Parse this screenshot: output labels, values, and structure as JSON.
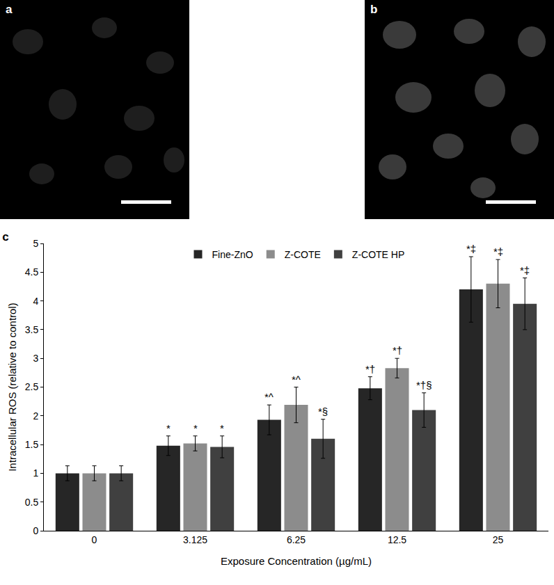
{
  "panels": [
    {
      "label": "a"
    },
    {
      "label": "b"
    }
  ],
  "chart_data": {
    "type": "bar",
    "title": "c",
    "x_label": "Exposure Concentration (µg/mL)",
    "y_label": "Intracellular ROS (relative to control)",
    "categories": [
      "0",
      "3.125",
      "6.25",
      "12.5",
      "25"
    ],
    "series": [
      {
        "name": "Fine-ZnO",
        "color": "#262626",
        "values": [
          1.0,
          1.48,
          1.93,
          2.48,
          4.2
        ],
        "errors": [
          0.13,
          0.17,
          0.26,
          0.2,
          0.57
        ],
        "annotations": [
          null,
          "*",
          "*^",
          "*†",
          "*‡"
        ]
      },
      {
        "name": "Z-COTE",
        "color": "#8c8c8c",
        "values": [
          1.0,
          1.52,
          2.19,
          2.83,
          4.3
        ],
        "errors": [
          0.13,
          0.13,
          0.31,
          0.17,
          0.42
        ],
        "annotations": [
          null,
          "*",
          "*^",
          "*†",
          "*‡"
        ]
      },
      {
        "name": "Z-COTE HP",
        "color": "#404040",
        "values": [
          1.0,
          1.46,
          1.6,
          2.1,
          3.95
        ],
        "errors": [
          0.13,
          0.19,
          0.34,
          0.3,
          0.45
        ],
        "annotations": [
          null,
          "*",
          "*§",
          "*†§",
          "*‡"
        ]
      }
    ],
    "ylim": [
      0,
      5
    ],
    "yticks": [
      0,
      0.5,
      1,
      1.5,
      2,
      2.5,
      3,
      3.5,
      4,
      4.5,
      5
    ],
    "grid": false,
    "legend": "top"
  }
}
